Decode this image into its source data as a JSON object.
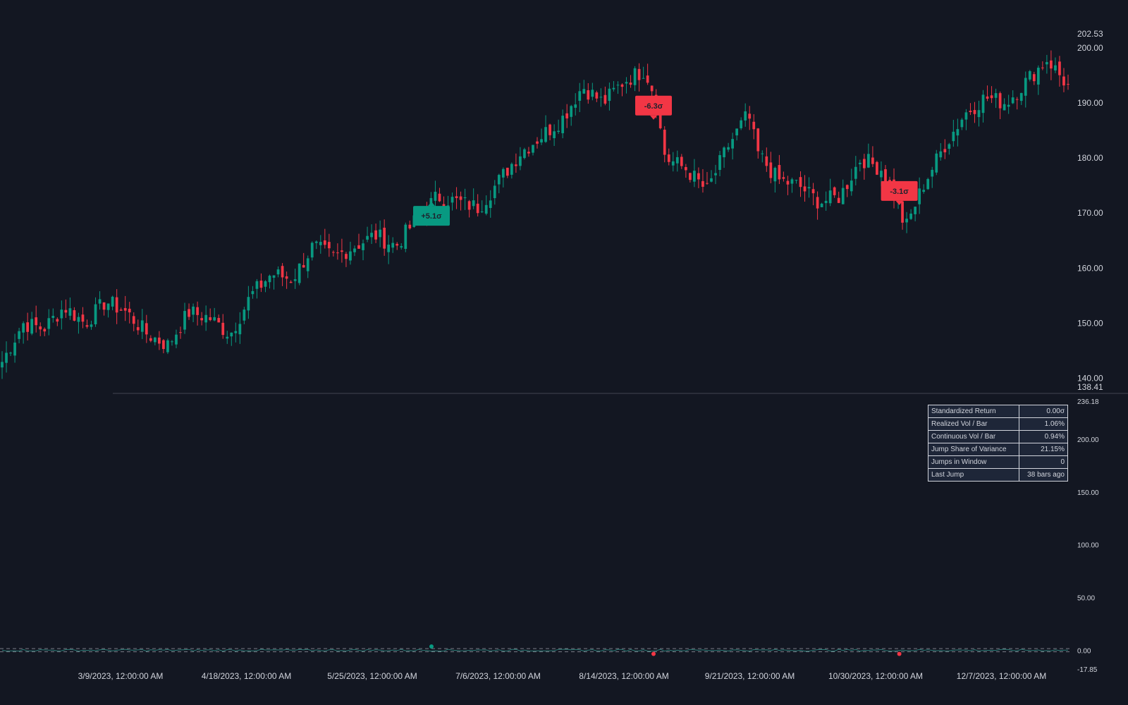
{
  "chart_data": [
    {
      "type": "candlestick",
      "panel": "price",
      "y_ticks": [
        "140.00",
        "150.00",
        "160.00",
        "170.00",
        "180.00",
        "190.00",
        "200.00"
      ],
      "y_range": [
        138.41,
        202.53
      ],
      "y_range_labels": {
        "max": "202.53",
        "min": "138.41"
      },
      "x_labels": [
        "3/9/2023, 12:00:00 AM",
        "4/18/2023, 12:00:00 AM",
        "5/25/2023, 12:00:00 AM",
        "7/6/2023, 12:00:00 AM",
        "8/14/2023, 12:00:00 AM",
        "9/21/2023, 12:00:00 AM",
        "10/30/2023, 12:00:00 AM",
        "12/7/2023, 12:00:00 AM"
      ],
      "close_path": [
        {
          "date": "2023-01-03",
          "close": 143
        },
        {
          "date": "2023-01-10",
          "close": 150
        },
        {
          "date": "2023-01-17",
          "close": 149
        },
        {
          "date": "2023-01-24",
          "close": 153
        },
        {
          "date": "2023-01-31",
          "close": 150
        },
        {
          "date": "2023-02-07",
          "close": 154
        },
        {
          "date": "2023-02-14",
          "close": 152
        },
        {
          "date": "2023-02-21",
          "close": 148
        },
        {
          "date": "2023-02-28",
          "close": 146
        },
        {
          "date": "2023-03-07",
          "close": 152
        },
        {
          "date": "2023-03-14",
          "close": 151
        },
        {
          "date": "2023-03-21",
          "close": 148
        },
        {
          "date": "2023-03-28",
          "close": 155
        },
        {
          "date": "2023-04-04",
          "close": 159
        },
        {
          "date": "2023-04-11",
          "close": 158
        },
        {
          "date": "2023-04-18",
          "close": 164
        },
        {
          "date": "2023-04-25",
          "close": 162
        },
        {
          "date": "2023-05-02",
          "close": 164
        },
        {
          "date": "2023-05-09",
          "close": 166
        },
        {
          "date": "2023-05-16",
          "close": 164
        },
        {
          "date": "2023-05-23",
          "close": 169
        },
        {
          "date": "2023-05-30",
          "close": 173
        },
        {
          "date": "2023-06-06",
          "close": 172
        },
        {
          "date": "2023-06-13",
          "close": 171
        },
        {
          "date": "2023-06-20",
          "close": 176
        },
        {
          "date": "2023-06-27",
          "close": 181
        },
        {
          "date": "2023-07-04",
          "close": 184
        },
        {
          "date": "2023-07-11",
          "close": 187
        },
        {
          "date": "2023-07-18",
          "close": 193
        },
        {
          "date": "2023-07-25",
          "close": 190
        },
        {
          "date": "2023-08-01",
          "close": 194
        },
        {
          "date": "2023-08-08",
          "close": 196
        },
        {
          "date": "2023-08-11",
          "close": 192
        },
        {
          "date": "2023-08-15",
          "close": 180
        },
        {
          "date": "2023-08-22",
          "close": 178
        },
        {
          "date": "2023-08-29",
          "close": 174
        },
        {
          "date": "2023-09-05",
          "close": 182
        },
        {
          "date": "2023-09-12",
          "close": 188
        },
        {
          "date": "2023-09-15",
          "close": 181
        },
        {
          "date": "2023-09-22",
          "close": 176
        },
        {
          "date": "2023-09-29",
          "close": 175
        },
        {
          "date": "2023-10-06",
          "close": 172
        },
        {
          "date": "2023-10-13",
          "close": 173
        },
        {
          "date": "2023-10-20",
          "close": 180
        },
        {
          "date": "2023-10-27",
          "close": 178
        },
        {
          "date": "2023-11-01",
          "close": 173
        },
        {
          "date": "2023-11-04",
          "close": 167
        },
        {
          "date": "2023-11-10",
          "close": 175
        },
        {
          "date": "2023-11-17",
          "close": 182
        },
        {
          "date": "2023-11-24",
          "close": 188
        },
        {
          "date": "2023-12-01",
          "close": 191
        },
        {
          "date": "2023-12-08",
          "close": 190
        },
        {
          "date": "2023-12-15",
          "close": 194
        },
        {
          "date": "2023-12-22",
          "close": 198
        },
        {
          "date": "2023-12-29",
          "close": 193
        }
      ],
      "jumps": [
        {
          "date": "2023-05-28",
          "label": "+5.1σ",
          "direction": "up",
          "price": 169.5
        },
        {
          "date": "2023-08-11",
          "label": "-6.3σ",
          "direction": "down",
          "price": 189.5
        },
        {
          "date": "2023-11-02",
          "label": "-3.1σ",
          "direction": "down",
          "price": 174
        }
      ]
    },
    {
      "type": "line",
      "panel": "indicator",
      "y_ticks": [
        "0.00",
        "50.00",
        "100.00",
        "150.00",
        "200.00"
      ],
      "y_range": [
        -17.85,
        236.18
      ],
      "y_range_labels": {
        "max": "236.18",
        "min": "-17.85"
      },
      "threshold_upper": 1.5,
      "threshold_lower": -1.5
    }
  ],
  "stats": [
    {
      "label": "Standardized Return",
      "value": "0.00σ"
    },
    {
      "label": "Realized Vol / Bar",
      "value": "1.06%"
    },
    {
      "label": "Continuous Vol / Bar",
      "value": "0.94%"
    },
    {
      "label": "Jump Share of Variance",
      "value": "21.15%"
    },
    {
      "label": "Jumps in Window",
      "value": "0"
    },
    {
      "label": "Last Jump",
      "value": "38 bars ago"
    }
  ],
  "colors": {
    "background": "#131722",
    "up": "#089981",
    "down": "#f23645",
    "text": "#d1d4dc",
    "divider": "#434651",
    "table_bg": "#1e2638"
  }
}
